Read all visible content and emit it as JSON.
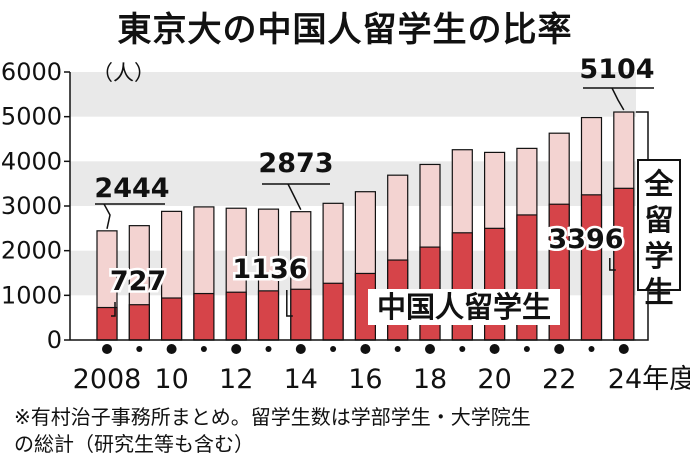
{
  "title": "東京大の中国人留学生の比率",
  "unit_label": "（人）",
  "footnote_lines": [
    "※有村治子事務所まとめ。留学生数は学部学生・大学院生",
    "の総計（研究生等も含む）"
  ],
  "colors": {
    "total": "#f3d3d1",
    "chinese": "#d64449",
    "band": "#e9e9e9",
    "ink": "#111111"
  },
  "chart_data": {
    "type": "bar",
    "x": [
      2008,
      2009,
      2010,
      2011,
      2012,
      2013,
      2014,
      2015,
      2016,
      2017,
      2018,
      2019,
      2020,
      2021,
      2022,
      2023,
      2024
    ],
    "x_tick_labels": [
      "2008",
      "10",
      "12",
      "14",
      "16",
      "18",
      "20",
      "22",
      "24年度"
    ],
    "x_tick_years": [
      2008,
      2010,
      2012,
      2014,
      2016,
      2018,
      2020,
      2022,
      2024
    ],
    "series": [
      {
        "name": "全留学生",
        "values": [
          2444,
          2560,
          2880,
          2980,
          2950,
          2930,
          2873,
          3060,
          3320,
          3690,
          3930,
          4260,
          4200,
          4290,
          4630,
          4980,
          5104
        ]
      },
      {
        "name": "中国人留学生",
        "values": [
          727,
          790,
          940,
          1040,
          1070,
          1100,
          1136,
          1270,
          1490,
          1790,
          2080,
          2400,
          2500,
          2800,
          3040,
          3250,
          3396
        ]
      }
    ],
    "ylim": [
      0,
      6000
    ],
    "yticks": [
      0,
      1000,
      2000,
      3000,
      4000,
      5000,
      6000
    ],
    "annotations": [
      {
        "text": "2444",
        "x": 2008,
        "series": "全留学生"
      },
      {
        "text": "727",
        "x": 2008,
        "series": "中国人留学生"
      },
      {
        "text": "2873",
        "x": 2014,
        "series": "全留学生"
      },
      {
        "text": "1136",
        "x": 2014,
        "series": "中国人留学生"
      },
      {
        "text": "5104",
        "x": 2024,
        "series": "全留学生"
      },
      {
        "text": "3396",
        "x": 2024,
        "series": "中国人留学生"
      }
    ],
    "legend": [
      {
        "label": "全留学生",
        "series": "全留学生"
      },
      {
        "label": "中国人留学生",
        "series": "中国人留学生"
      }
    ]
  }
}
